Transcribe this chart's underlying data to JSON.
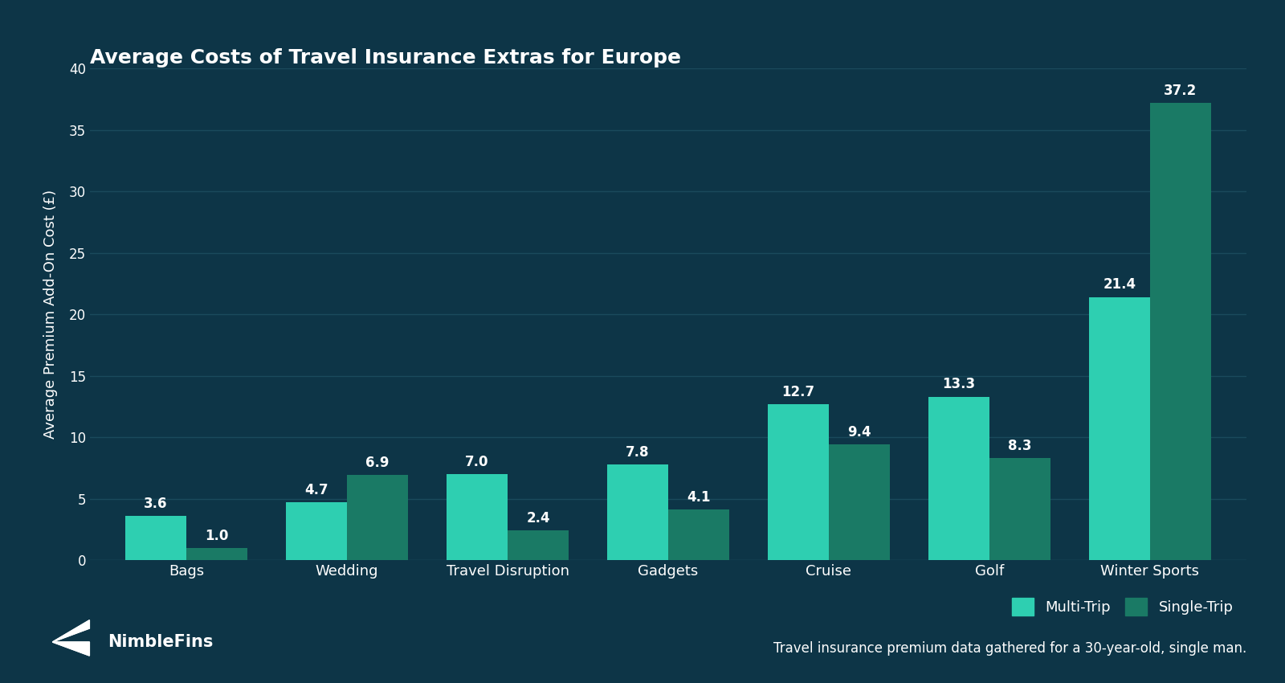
{
  "title": "Average Costs of Travel Insurance Extras for Europe",
  "ylabel": "Average Premium Add-On Cost (£)",
  "categories": [
    "Bags",
    "Wedding",
    "Travel Disruption",
    "Gadgets",
    "Cruise",
    "Golf",
    "Winter Sports"
  ],
  "multi_trip": [
    3.6,
    4.7,
    7.0,
    7.8,
    12.7,
    13.3,
    21.4
  ],
  "single_trip": [
    1.0,
    6.9,
    2.4,
    4.1,
    9.4,
    8.3,
    37.2
  ],
  "multi_trip_color": "#2ecfb1",
  "single_trip_color": "#1a7a65",
  "background_color": "#0d3547",
  "text_color": "#ffffff",
  "grid_color": "#1a4a5c",
  "ylim": [
    0,
    40
  ],
  "yticks": [
    0,
    5,
    10,
    15,
    20,
    25,
    30,
    35,
    40
  ],
  "legend_labels": [
    "Multi-Trip",
    "Single-Trip"
  ],
  "footer_right": "Travel insurance premium data gathered for a 30-year-old, single man.",
  "bar_width": 0.38
}
